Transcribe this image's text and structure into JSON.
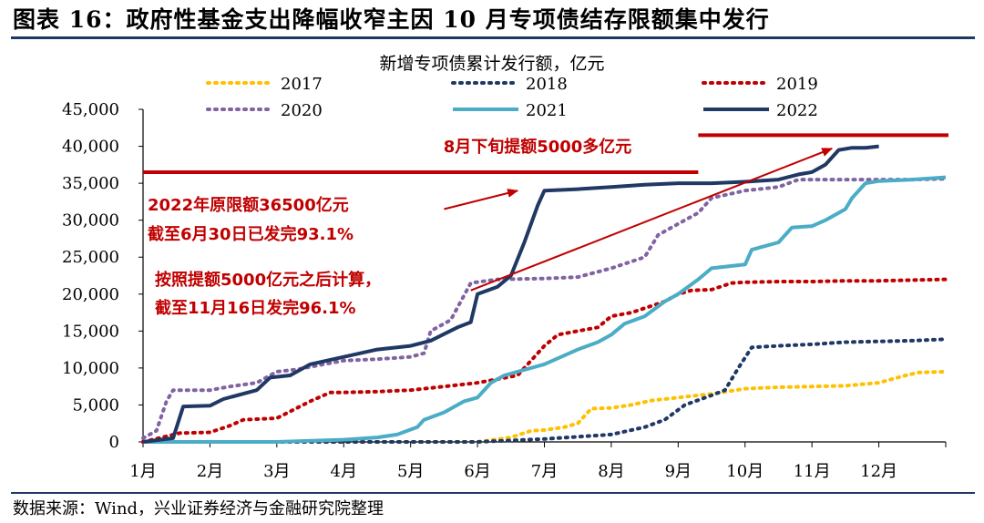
{
  "figure": {
    "title": "图表 16：政府性基金支出降幅收窄主因 10 月专项债结存限额集中发行",
    "source": "数据来源：Wind，兴业证券经济与金融研究院整理"
  },
  "colors": {
    "s2017": "#ffc000",
    "s2018": "#1f3864",
    "s2019": "#c00000",
    "s2020": "#8064a2",
    "s2021": "#4bacc6",
    "s2022": "#1f3864",
    "annotation": "#c00000",
    "axis": "#000000"
  },
  "chart_data": {
    "type": "line",
    "title": "新增专项债累计发行额，亿元",
    "xlabel": "",
    "ylabel": "",
    "xlim": [
      0,
      12
    ],
    "ylim": [
      0,
      45000
    ],
    "yticks": [
      0,
      5000,
      10000,
      15000,
      20000,
      25000,
      30000,
      35000,
      40000,
      45000
    ],
    "ytick_labels": [
      "0",
      "5,000",
      "10,000",
      "15,000",
      "20,000",
      "25,000",
      "30,000",
      "35,000",
      "40,000",
      "45,000"
    ],
    "xtick_labels": [
      "1月",
      "2月",
      "3月",
      "4月",
      "5月",
      "6月",
      "7月",
      "8月",
      "9月",
      "10月",
      "11月",
      "12月"
    ],
    "x_unit": "months since Jan 1",
    "series": [
      {
        "name": "2017",
        "style": "dotted",
        "color_key": "s2017",
        "points": [
          [
            0,
            0
          ],
          [
            5,
            0
          ],
          [
            5.5,
            600
          ],
          [
            5.8,
            1500
          ],
          [
            6,
            1600
          ],
          [
            6.3,
            2000
          ],
          [
            6.5,
            2500
          ],
          [
            6.6,
            3500
          ],
          [
            6.7,
            4500
          ],
          [
            7,
            4600
          ],
          [
            7.3,
            5000
          ],
          [
            7.6,
            5600
          ],
          [
            8,
            6000
          ],
          [
            8.5,
            6500
          ],
          [
            9,
            7200
          ],
          [
            9.5,
            7400
          ],
          [
            10,
            7500
          ],
          [
            10.5,
            7600
          ],
          [
            11,
            8000
          ],
          [
            11.4,
            9000
          ],
          [
            11.6,
            9400
          ],
          [
            12,
            9500
          ]
        ]
      },
      {
        "name": "2018",
        "style": "dotted",
        "color_key": "s2018",
        "points": [
          [
            0,
            0
          ],
          [
            5,
            0
          ],
          [
            6,
            400
          ],
          [
            7,
            1000
          ],
          [
            7.5,
            2000
          ],
          [
            7.8,
            3000
          ],
          [
            8.1,
            5000
          ],
          [
            8.5,
            6300
          ],
          [
            8.7,
            7000
          ],
          [
            8.9,
            10000
          ],
          [
            9.1,
            12800
          ],
          [
            9.5,
            13000
          ],
          [
            10,
            13200
          ],
          [
            10.5,
            13500
          ],
          [
            11,
            13600
          ],
          [
            11.5,
            13700
          ],
          [
            12,
            13900
          ]
        ]
      },
      {
        "name": "2019",
        "style": "dotted",
        "color_key": "s2019",
        "points": [
          [
            0,
            0
          ],
          [
            0.55,
            1200
          ],
          [
            1,
            1300
          ],
          [
            1.3,
            2200
          ],
          [
            1.5,
            3000
          ],
          [
            2,
            3200
          ],
          [
            2.5,
            5500
          ],
          [
            2.8,
            6700
          ],
          [
            3,
            6700
          ],
          [
            3.5,
            6800
          ],
          [
            4,
            7000
          ],
          [
            4.5,
            7500
          ],
          [
            5,
            8000
          ],
          [
            5.3,
            8500
          ],
          [
            5.6,
            9000
          ],
          [
            5.8,
            11000
          ],
          [
            6,
            13000
          ],
          [
            6.2,
            14500
          ],
          [
            6.5,
            15000
          ],
          [
            6.8,
            15500
          ],
          [
            7,
            17000
          ],
          [
            7.3,
            17500
          ],
          [
            7.8,
            19000
          ],
          [
            8,
            20000
          ],
          [
            8.2,
            20500
          ],
          [
            8.5,
            20600
          ],
          [
            8.8,
            21500
          ],
          [
            9,
            21600
          ],
          [
            9.5,
            21700
          ],
          [
            10,
            21700
          ],
          [
            10.5,
            21800
          ],
          [
            11,
            21800
          ],
          [
            11.5,
            21900
          ],
          [
            12,
            22000
          ]
        ]
      },
      {
        "name": "2020",
        "style": "dotted",
        "color_key": "s2020",
        "points": [
          [
            0,
            500
          ],
          [
            0.2,
            1500
          ],
          [
            0.35,
            5500
          ],
          [
            0.45,
            7000
          ],
          [
            1,
            7000
          ],
          [
            1.3,
            7500
          ],
          [
            1.7,
            8000
          ],
          [
            2,
            9500
          ],
          [
            2.3,
            9800
          ],
          [
            2.7,
            10500
          ],
          [
            3,
            11000
          ],
          [
            3.5,
            11200
          ],
          [
            4,
            11500
          ],
          [
            4.2,
            12000
          ],
          [
            4.3,
            15000
          ],
          [
            4.6,
            16500
          ],
          [
            4.9,
            21500
          ],
          [
            5.3,
            22000
          ],
          [
            6,
            22100
          ],
          [
            6.5,
            22300
          ],
          [
            7,
            23500
          ],
          [
            7.5,
            25000
          ],
          [
            7.7,
            28000
          ],
          [
            8,
            29500
          ],
          [
            8.3,
            31000
          ],
          [
            8.5,
            33000
          ],
          [
            9,
            34000
          ],
          [
            9.5,
            34500
          ],
          [
            9.8,
            35500
          ],
          [
            10.5,
            35500
          ],
          [
            11,
            35500
          ],
          [
            11.5,
            35500
          ],
          [
            12,
            35600
          ]
        ]
      },
      {
        "name": "2021",
        "style": "solid",
        "color_key": "s2021",
        "points": [
          [
            0,
            0
          ],
          [
            2,
            0
          ],
          [
            3,
            300
          ],
          [
            3.5,
            600
          ],
          [
            3.8,
            1000
          ],
          [
            4.1,
            2000
          ],
          [
            4.2,
            3000
          ],
          [
            4.5,
            4000
          ],
          [
            4.8,
            5500
          ],
          [
            5,
            6000
          ],
          [
            5.2,
            8000
          ],
          [
            5.4,
            9000
          ],
          [
            6,
            10500
          ],
          [
            6.5,
            12500
          ],
          [
            6.8,
            13500
          ],
          [
            7,
            14500
          ],
          [
            7.2,
            16000
          ],
          [
            7.5,
            17000
          ],
          [
            7.8,
            19000
          ],
          [
            8,
            20000
          ],
          [
            8.3,
            22000
          ],
          [
            8.5,
            23500
          ],
          [
            9,
            24000
          ],
          [
            9.1,
            26000
          ],
          [
            9.5,
            27000
          ],
          [
            9.7,
            29000
          ],
          [
            10,
            29200
          ],
          [
            10.2,
            30000
          ],
          [
            10.5,
            31500
          ],
          [
            10.6,
            33000
          ],
          [
            10.8,
            35000
          ],
          [
            11,
            35300
          ],
          [
            11.5,
            35500
          ],
          [
            12,
            35800
          ]
        ]
      },
      {
        "name": "2022",
        "style": "solid-thick",
        "color_key": "s2022",
        "points": [
          [
            0,
            0
          ],
          [
            0.45,
            500
          ],
          [
            0.6,
            4800
          ],
          [
            1,
            4900
          ],
          [
            1.2,
            5800
          ],
          [
            1.7,
            7000
          ],
          [
            1.9,
            8700
          ],
          [
            2.2,
            9000
          ],
          [
            2.5,
            10500
          ],
          [
            3,
            11500
          ],
          [
            3.5,
            12500
          ],
          [
            4,
            13000
          ],
          [
            4.3,
            13700
          ],
          [
            4.7,
            15500
          ],
          [
            4.9,
            16200
          ],
          [
            5,
            20000
          ],
          [
            5.3,
            21000
          ],
          [
            5.5,
            22500
          ],
          [
            5.7,
            27000
          ],
          [
            5.9,
            32000
          ],
          [
            6,
            34000
          ],
          [
            6.5,
            34200
          ],
          [
            7,
            34500
          ],
          [
            7.5,
            34800
          ],
          [
            8,
            35000
          ],
          [
            8.5,
            35000
          ],
          [
            9,
            35200
          ],
          [
            9.5,
            35500
          ],
          [
            9.8,
            36200
          ],
          [
            10,
            36500
          ],
          [
            10.2,
            37500
          ],
          [
            10.4,
            39500
          ],
          [
            10.6,
            39800
          ],
          [
            10.8,
            39800
          ],
          [
            11,
            40000
          ]
        ]
      }
    ],
    "annotations": {
      "note_top": "8月下旬提额5000多亿元",
      "note_quota_line1": "2022年原限额36500亿元",
      "note_quota_line2": "截至6月30日已发完93.1%",
      "note_raise_line1": "按照提额5000亿元之后计算，",
      "note_raise_line2": "截至11月16日发完96.1%",
      "original_quota_value": 36500,
      "raised_quota_value": 41500,
      "original_quota_x_range": [
        0,
        8.3
      ],
      "raised_quota_x_range": [
        8.3,
        12
      ],
      "arrows_from_to": [
        [
          [
            4.5,
            31500
          ],
          [
            5.6,
            34000
          ]
        ],
        [
          [
            4.9,
            20500
          ],
          [
            10.3,
            39700
          ]
        ]
      ]
    }
  }
}
